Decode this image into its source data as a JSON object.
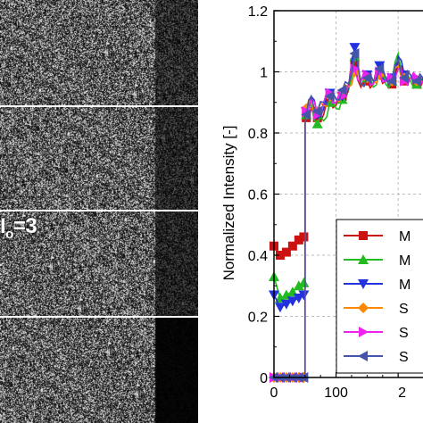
{
  "image_panels": {
    "label_main": "I",
    "label_sub": "o",
    "label_tail": "=3"
  },
  "chart_data": {
    "type": "line",
    "title": "",
    "xlabel": "",
    "ylabel": "Normalized Intensity [-]",
    "xlim": [
      0,
      240
    ],
    "ylim": [
      0,
      1.2
    ],
    "xticks": [
      "0",
      "100",
      "2"
    ],
    "yticks": [
      "0",
      "0.2",
      "0.4",
      "0.6",
      "0.8",
      "1",
      "1.2"
    ],
    "grid": true,
    "legend_placement": "lower-right",
    "series": [
      {
        "name": "M",
        "color": "#cc1111",
        "marker": "square",
        "x": [
          0,
          10,
          20,
          30,
          40,
          48,
          52,
          60,
          70,
          80,
          90,
          100,
          110,
          120,
          130,
          140,
          150,
          160,
          170,
          180,
          190,
          200,
          210,
          220,
          230,
          240
        ],
        "y": [
          0.43,
          0.4,
          0.41,
          0.43,
          0.45,
          0.46,
          0.85,
          0.88,
          0.85,
          0.86,
          0.91,
          0.89,
          0.92,
          0.94,
          1.03,
          0.95,
          0.97,
          0.96,
          0.99,
          0.97,
          0.96,
          1.03,
          0.97,
          0.98,
          0.96,
          0.97
        ]
      },
      {
        "name": "M",
        "color": "#22bb22",
        "marker": "triangle-up",
        "x": [
          0,
          10,
          20,
          30,
          40,
          48,
          52,
          60,
          70,
          80,
          90,
          100,
          110,
          120,
          130,
          140,
          150,
          160,
          170,
          180,
          190,
          200,
          210,
          220,
          230,
          240
        ],
        "y": [
          0.33,
          0.26,
          0.27,
          0.28,
          0.3,
          0.31,
          0.86,
          0.89,
          0.83,
          0.84,
          0.9,
          0.88,
          0.91,
          0.94,
          1.05,
          0.96,
          0.98,
          0.95,
          1.0,
          0.96,
          0.97,
          1.06,
          0.98,
          0.97,
          0.96,
          0.97
        ]
      },
      {
        "name": "M",
        "color": "#2233dd",
        "marker": "triangle-down",
        "x": [
          0,
          10,
          20,
          30,
          40,
          48,
          52,
          60,
          70,
          80,
          90,
          100,
          110,
          120,
          130,
          140,
          150,
          160,
          170,
          180,
          190,
          200,
          210,
          220,
          230,
          240
        ],
        "y": [
          0.27,
          0.23,
          0.24,
          0.25,
          0.26,
          0.27,
          0.87,
          0.92,
          0.86,
          0.88,
          0.93,
          0.9,
          0.92,
          0.95,
          1.08,
          0.97,
          0.99,
          0.96,
          1.02,
          0.97,
          0.98,
          1.05,
          0.99,
          0.98,
          0.97,
          0.98
        ]
      },
      {
        "name": "S",
        "color": "#ff8800",
        "marker": "diamond",
        "x": [
          0,
          10,
          20,
          30,
          40,
          48,
          52,
          60,
          70,
          80,
          90,
          100,
          110,
          120,
          130,
          140,
          150,
          160,
          170,
          180,
          190,
          200,
          210,
          220,
          230,
          240
        ],
        "y": [
          0.0,
          0.0,
          0.0,
          0.0,
          0.0,
          0.0,
          0.88,
          0.9,
          0.87,
          0.89,
          0.92,
          0.91,
          0.93,
          0.95,
          1.0,
          0.96,
          0.98,
          0.97,
          0.99,
          0.98,
          0.97,
          1.02,
          0.98,
          0.99,
          0.97,
          0.98
        ]
      },
      {
        "name": "S",
        "color": "#ee22ee",
        "marker": "triangle-right",
        "x": [
          0,
          10,
          20,
          30,
          40,
          48,
          52,
          60,
          70,
          80,
          90,
          100,
          110,
          120,
          130,
          140,
          150,
          160,
          170,
          180,
          190,
          200,
          210,
          220,
          230,
          240
        ],
        "y": [
          0.0,
          0.0,
          0.0,
          0.0,
          0.0,
          0.0,
          0.87,
          0.91,
          0.86,
          0.9,
          0.93,
          0.9,
          0.92,
          0.96,
          1.01,
          0.97,
          0.99,
          0.96,
          1.0,
          0.97,
          0.98,
          1.01,
          0.97,
          0.98,
          0.98,
          0.97
        ]
      },
      {
        "name": "S",
        "color": "#4455aa",
        "marker": "triangle-left",
        "x": [
          0,
          10,
          20,
          30,
          40,
          48,
          52,
          60,
          70,
          80,
          90,
          100,
          110,
          120,
          130,
          140,
          150,
          160,
          170,
          180,
          190,
          200,
          210,
          220,
          230,
          240
        ],
        "y": [
          0.0,
          0.0,
          0.0,
          0.0,
          0.0,
          0.0,
          0.86,
          0.92,
          0.87,
          0.9,
          0.92,
          0.91,
          0.94,
          0.96,
          1.06,
          0.96,
          0.98,
          0.97,
          1.01,
          0.98,
          0.97,
          1.04,
          0.98,
          0.99,
          0.97,
          0.98
        ]
      }
    ]
  }
}
